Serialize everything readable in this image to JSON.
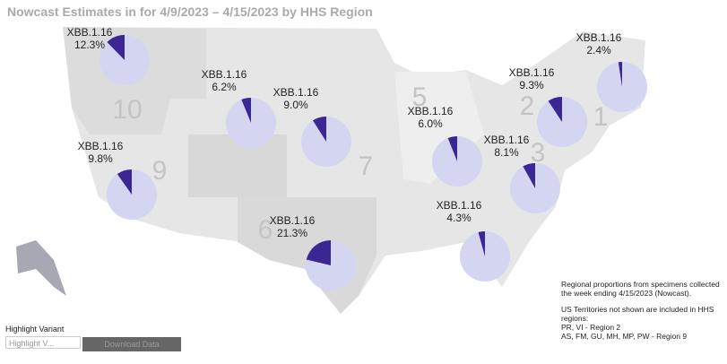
{
  "title": "Nowcast Estimates in for 4/9/2023 – 4/15/2023 by HHS Region",
  "region_numbers": [
    "10",
    "9",
    "7",
    "5",
    "2",
    "1",
    "6",
    "3"
  ],
  "pies": [
    {
      "label": "XBB.1.16",
      "value": 12.3,
      "value_label": "12.3%"
    },
    {
      "label": "XBB.1.16",
      "value": 6.2,
      "value_label": "6.2%"
    },
    {
      "label": "XBB.1.16",
      "value": 9.0,
      "value_label": "9.0%"
    },
    {
      "label": "XBB.1.16",
      "value": 9.8,
      "value_label": "9.8%"
    },
    {
      "label": "XBB.1.16",
      "value": 21.3,
      "value_label": "21.3%"
    },
    {
      "label": "XBB.1.16",
      "value": 6.0,
      "value_label": "6.0%"
    },
    {
      "label": "XBB.1.16",
      "value": 8.1,
      "value_label": "8.1%"
    },
    {
      "label": "XBB.1.16",
      "value": 4.3,
      "value_label": "4.3%"
    },
    {
      "label": "XBB.1.16",
      "value": 9.3,
      "value_label": "9.3%"
    },
    {
      "label": "XBB.1.16",
      "value": 2.4,
      "value_label": "2.4%"
    }
  ],
  "note": [
    "Regional proportions from specimens collected the week ending 4/15/2023 (Nowcast).",
    "US Territories not shown are included in HHS regions:",
    "PR, VI - Region 2",
    "AS, FM, GU, MH, MP, PW - Region 9"
  ],
  "highlight": {
    "label": "Highlight Variant",
    "placeholder": "Highlight V...",
    "button": "Download Data"
  }
}
